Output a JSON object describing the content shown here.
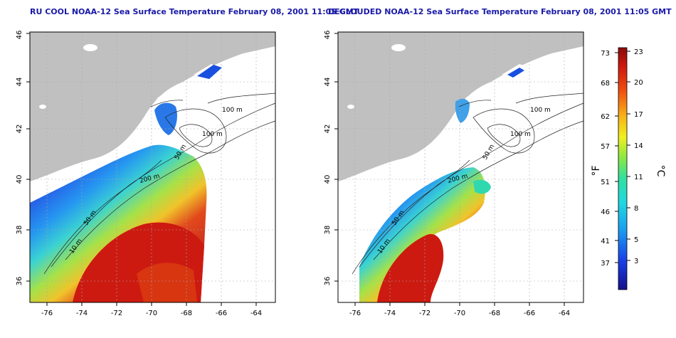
{
  "left_panel": {
    "title": "RU COOL NOAA-12 Sea Surface Temperature February 08, 2001 11:05 GMT"
  },
  "right_panel": {
    "title": "DECLOUDED NOAA-12 Sea Surface Temperature February 08, 2001 11:05 GMT"
  },
  "axes": {
    "lon_ticks": [
      "-76",
      "-74",
      "-72",
      "-70",
      "-68",
      "-66",
      "-64"
    ],
    "lat_ticks": [
      "36",
      "38",
      "40",
      "42",
      "44",
      "46"
    ]
  },
  "contour_labels": [
    "100 m",
    "100 m",
    "50 m",
    "200 m",
    "50 m",
    "10 m"
  ],
  "colorbar": {
    "unit_f": "°F",
    "unit_c": "°C",
    "f_ticks": [
      "73",
      "68",
      "62",
      "57",
      "51",
      "46",
      "41",
      "37"
    ],
    "c_ticks": [
      "23",
      "20",
      "17",
      "14",
      "11",
      "8",
      "5",
      "3"
    ]
  },
  "colors": {
    "land": "#c0c0c0",
    "title": "#1a1aa8",
    "warm": "#cc1a10",
    "cold": "#1a40d8"
  }
}
